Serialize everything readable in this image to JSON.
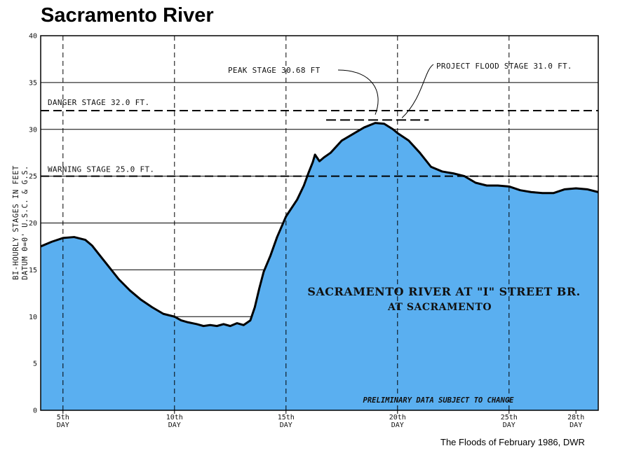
{
  "title": "Sacramento River",
  "credit": "The Floods of February 1986, DWR",
  "colors": {
    "fill": "#5aaff0",
    "line": "#000000",
    "grid": "#000000"
  },
  "chart_data": {
    "type": "area",
    "title": "Sacramento River",
    "ylabel_line1": "BI-HOURLY STAGES IN FEET",
    "ylabel_line2": "DATUM 0=0' U.S.C. & G.S.",
    "ylim": [
      0,
      40
    ],
    "xlim": [
      4,
      29
    ],
    "y_ticks": [
      0,
      5,
      10,
      15,
      20,
      25,
      30,
      35,
      40
    ],
    "x_ticks": [
      {
        "x": 5,
        "top": "5th",
        "bottom": "DAY"
      },
      {
        "x": 10,
        "top": "10th",
        "bottom": "DAY"
      },
      {
        "x": 15,
        "top": "15th",
        "bottom": "DAY"
      },
      {
        "x": 20,
        "top": "20th",
        "bottom": "DAY"
      },
      {
        "x": 25,
        "top": "25th",
        "bottom": "DAY"
      },
      {
        "x": 28,
        "top": "28th",
        "bottom": "DAY"
      }
    ],
    "grid": true,
    "reference_lines": [
      {
        "label": "DANGER STAGE 32.0 FT.",
        "y": 32.0
      },
      {
        "label": "WARNING STAGE 25.0 FT.",
        "y": 25.0
      }
    ],
    "annotations": {
      "peak": "PEAK STAGE 30.68 FT",
      "project_flood": "PROJECT FLOOD STAGE 31.0 FT.",
      "station_line1": "SACRAMENTO RIVER AT \"I\" STREET BR.",
      "station_line2": "AT SACRAMENTO",
      "note": "PRELIMINARY DATA SUBJECT TO CHANGE"
    },
    "series": [
      {
        "x": [
          4.0,
          4.5,
          5.0,
          5.5,
          6.0,
          6.3,
          6.7,
          7.0,
          7.5,
          8.0,
          8.5,
          9.0,
          9.5,
          10.0,
          10.3,
          10.6,
          11.0,
          11.3,
          11.6,
          11.9,
          12.2,
          12.5,
          12.8,
          13.1,
          13.4,
          13.6,
          13.8,
          14.0,
          14.3,
          14.6,
          15.0,
          15.5,
          15.8,
          16.0,
          16.2,
          16.3,
          16.5,
          16.7,
          17.0,
          17.5,
          18.0,
          18.5,
          19.0,
          19.4,
          19.8,
          20.0,
          20.5,
          21.0,
          21.5,
          22.0,
          22.5,
          23.0,
          23.5,
          24.0,
          24.5,
          25.0,
          25.5,
          26.0,
          26.5,
          27.0,
          27.5,
          28.0,
          28.5,
          29.0
        ],
        "values": [
          17.5,
          18.0,
          18.4,
          18.5,
          18.2,
          17.6,
          16.4,
          15.5,
          14.0,
          12.8,
          11.8,
          11.0,
          10.3,
          10.0,
          9.6,
          9.4,
          9.2,
          9.0,
          9.1,
          9.0,
          9.2,
          9.0,
          9.3,
          9.1,
          9.6,
          11.0,
          13.0,
          14.8,
          16.5,
          18.5,
          20.7,
          22.5,
          24.0,
          25.3,
          26.5,
          27.3,
          26.6,
          27.0,
          27.5,
          28.8,
          29.5,
          30.2,
          30.68,
          30.6,
          30.0,
          29.6,
          28.8,
          27.5,
          26.0,
          25.5,
          25.3,
          25.0,
          24.3,
          24.0,
          24.0,
          23.9,
          23.5,
          23.3,
          23.2,
          23.2,
          23.6,
          23.7,
          23.6,
          23.3
        ]
      }
    ]
  }
}
